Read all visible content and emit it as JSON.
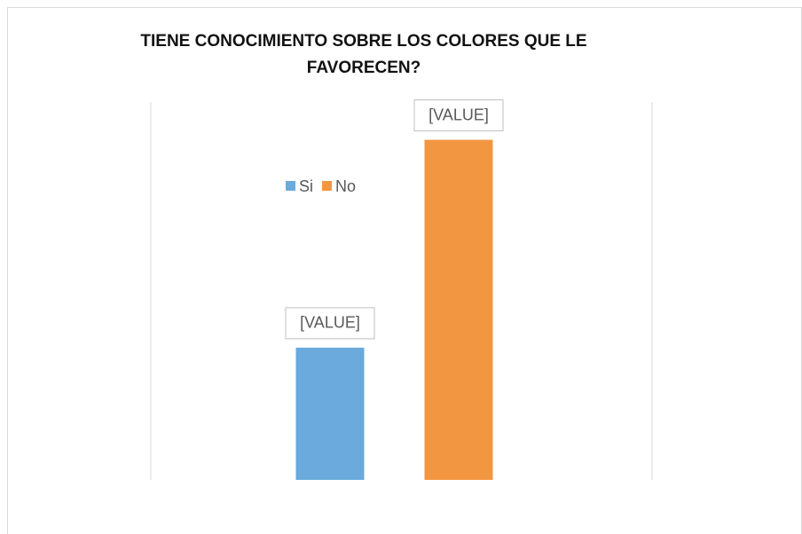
{
  "chart_data": {
    "type": "bar",
    "title": "TIENE CONOCIMIENTO SOBRE LOS COLORES QUE LE FAVORECEN?",
    "categories": [
      null
    ],
    "series": [
      {
        "name": "Si",
        "color": "#6aaadc",
        "values": [
          28
        ],
        "value_labels": [
          "[VALUE]"
        ]
      },
      {
        "name": "No",
        "color": "#f39642",
        "values": [
          72
        ],
        "value_labels": [
          "[VALUE]"
        ]
      }
    ],
    "ylim": [
      0,
      80
    ],
    "legend": "top-left"
  }
}
